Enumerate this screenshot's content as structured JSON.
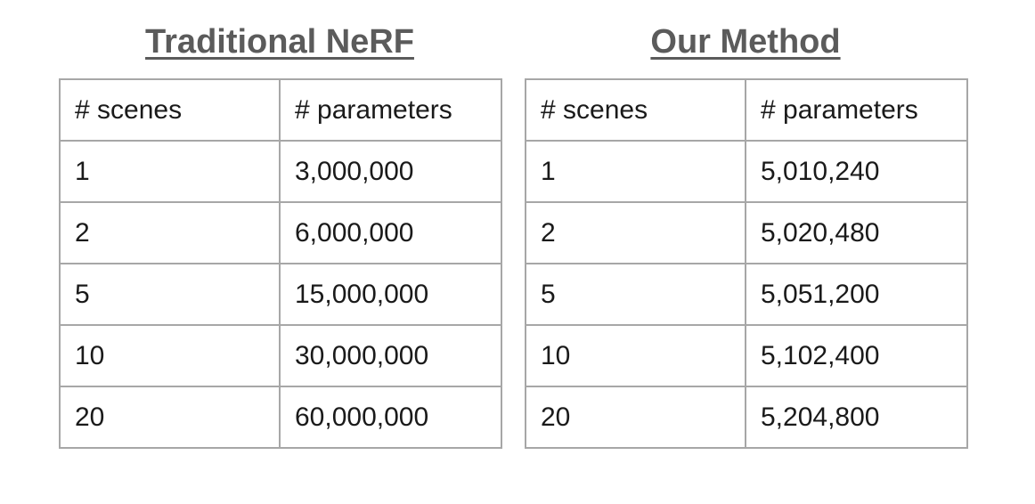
{
  "chart_data": [
    {
      "type": "table",
      "title": "Traditional NeRF",
      "columns": [
        "# scenes",
        "# parameters"
      ],
      "rows": [
        [
          "1",
          "3,000,000"
        ],
        [
          "2",
          "6,000,000"
        ],
        [
          "5",
          "15,000,000"
        ],
        [
          "10",
          "30,000,000"
        ],
        [
          "20",
          "60,000,000"
        ]
      ]
    },
    {
      "type": "table",
      "title": "Our Method",
      "columns": [
        "# scenes",
        "# parameters"
      ],
      "rows": [
        [
          "1",
          "5,010,240"
        ],
        [
          "2",
          "5,020,480"
        ],
        [
          "5",
          "5,051,200"
        ],
        [
          "10",
          "5,102,400"
        ],
        [
          "20",
          "5,204,800"
        ]
      ]
    }
  ],
  "colors": {
    "title": "#5b5b5b",
    "border": "#a7a7a7",
    "text": "#1a1a1a"
  }
}
